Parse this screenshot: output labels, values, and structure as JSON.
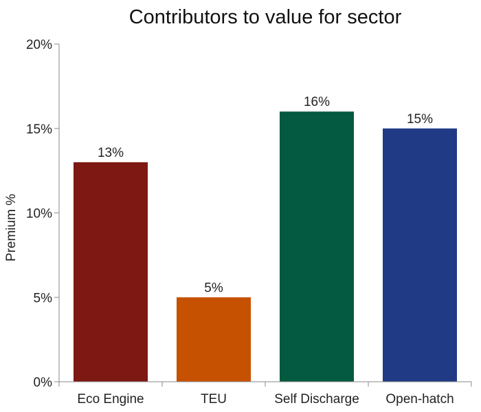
{
  "chart_data": {
    "type": "bar",
    "title": "Contributors to value for sector",
    "xlabel": "",
    "ylabel": "Premium %",
    "ylim": [
      0,
      20
    ],
    "yticks": [
      0,
      5,
      10,
      15,
      20
    ],
    "ytick_labels": [
      "0%",
      "5%",
      "10%",
      "15%",
      "20%"
    ],
    "categories": [
      "Eco Engine",
      "TEU",
      "Self Discharge",
      "Open-hatch"
    ],
    "values": [
      13,
      5,
      16,
      15
    ],
    "data_labels": [
      "13%",
      "5%",
      "16%",
      "15%"
    ],
    "colors": [
      "#7d1812",
      "#c65100",
      "#045a40",
      "#203a85"
    ],
    "grid": false,
    "legend": "none"
  }
}
